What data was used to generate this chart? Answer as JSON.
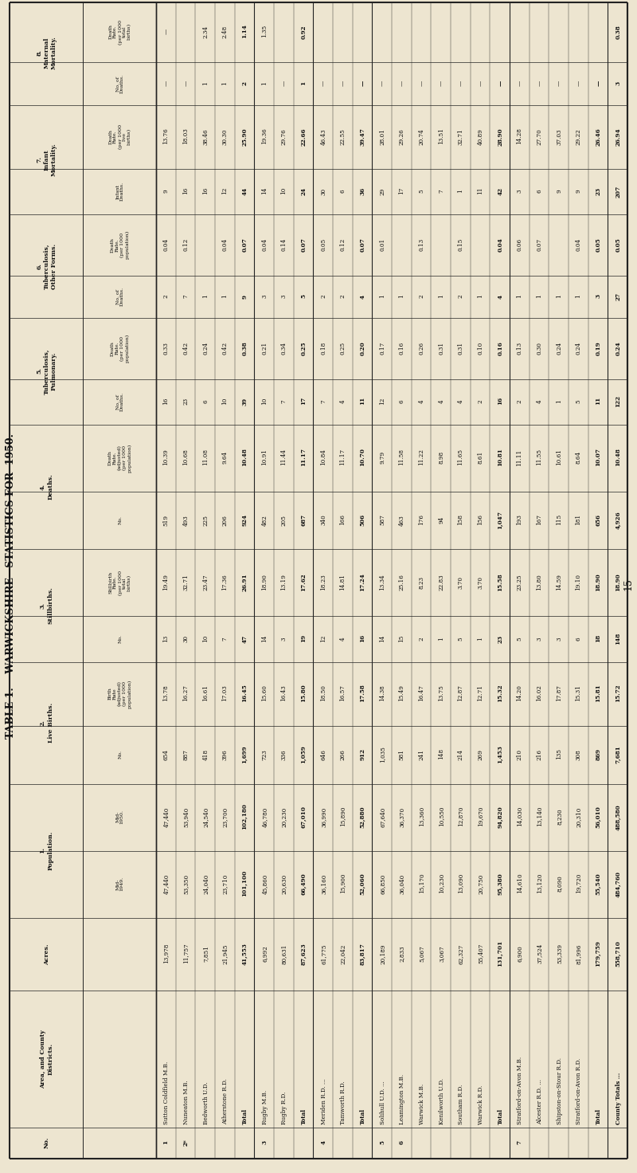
{
  "title": "TABLE 1.    WARWICKSHIRE—STATISTICS FOR  1950.",
  "page_number": "15",
  "bg_color": "#ede5d0",
  "table_bg": "#f0ead8",
  "rows": [
    {
      "no": "1",
      "area": "Sutton Coldfield M.B.",
      "acres": "13,978",
      "pop49": "47,440",
      "pop50": "47,440",
      "lb_no": "654",
      "lb_rate": "13.78",
      "sb_no": "13",
      "sb_rate": "19.49",
      "d_no": "519",
      "d_rate": "10.39",
      "tp_no": "16",
      "tp_rate": "0.33",
      "to_no": "2",
      "to_rate": "0.04",
      "id": "9",
      "im": "13.76",
      "md": "—",
      "mm": "—",
      "is_total": false,
      "is_county": false
    },
    {
      "no": "2*",
      "area": "Nuneaton M.B.",
      "acres": "11,757",
      "pop49": "53,350",
      "pop50": "53,940",
      "lb_no": "887",
      "lb_rate": "16.27",
      "sb_no": "30",
      "sb_rate": "32.71",
      "d_no": "493",
      "d_rate": "10.68",
      "tp_no": "23",
      "tp_rate": "0.42",
      "to_no": "7",
      "to_rate": "0.12",
      "id": "16",
      "im": "18.03",
      "md": "—",
      "mm": "",
      "is_total": false,
      "is_county": false
    },
    {
      "no": "",
      "area": "Bedworth U.D.",
      "acres": "7,851",
      "pop49": "24,040",
      "pop50": "24,540",
      "lb_no": "418",
      "lb_rate": "16.61",
      "sb_no": "10",
      "sb_rate": "23.47",
      "d_no": "225",
      "d_rate": "11.08",
      "tp_no": "6",
      "tp_rate": "0.24",
      "to_no": "1",
      "to_rate": "",
      "id": "16",
      "im": "38.46",
      "md": "1",
      "mm": "2.34",
      "is_total": false,
      "is_county": false
    },
    {
      "no": "",
      "area": "Atherstone R.D.",
      "acres": "21,945",
      "pop49": "23,710",
      "pop50": "23,700",
      "lb_no": "396",
      "lb_rate": "17.03",
      "sb_no": "7",
      "sb_rate": "17.36",
      "d_no": "206",
      "d_rate": "9.64",
      "tp_no": "10",
      "tp_rate": "0.42",
      "to_no": "1",
      "to_rate": "0.04",
      "id": "12",
      "im": "30.30",
      "md": "1",
      "mm": "2.48",
      "is_total": false,
      "is_county": false
    },
    {
      "no": "",
      "area": "Total",
      "acres": "41,553",
      "pop49": "101,100",
      "pop50": "102,180",
      "lb_no": "1,699",
      "lb_rate": "16.45",
      "sb_no": "47",
      "sb_rate": "26.91",
      "d_no": "924",
      "d_rate": "10.48",
      "tp_no": "39",
      "tp_rate": "0.38",
      "to_no": "9",
      "to_rate": "0.07",
      "id": "44",
      "im": "25.90",
      "md": "2",
      "mm": "1.14",
      "is_total": true,
      "is_county": false
    },
    {
      "no": "3",
      "area": "Rugby M.B.",
      "acres": "6,992",
      "pop49": "45,860",
      "pop50": "46,780",
      "lb_no": "723",
      "lb_rate": "15.60",
      "sb_no": "14",
      "sb_rate": "18.90",
      "d_no": "482",
      "d_rate": "10.91",
      "tp_no": "10",
      "tp_rate": "0.21",
      "to_no": "3",
      "to_rate": "0.04",
      "id": "14",
      "im": "19.36",
      "md": "1",
      "mm": "1.35",
      "is_total": false,
      "is_county": false
    },
    {
      "no": "",
      "area": "Rugby R.D.",
      "acres": "80,631",
      "pop49": "20,630",
      "pop50": "20,230",
      "lb_no": "336",
      "lb_rate": "16.43",
      "sb_no": "3",
      "sb_rate": "13.19",
      "d_no": "205",
      "d_rate": "11.44",
      "tp_no": "7",
      "tp_rate": "0.34",
      "to_no": "3",
      "to_rate": "0.14",
      "id": "10",
      "im": "29.76",
      "md": "—",
      "mm": "",
      "is_total": false,
      "is_county": false
    },
    {
      "no": "",
      "area": "Total",
      "acres": "87,623",
      "pop49": "66,490",
      "pop50": "67,010",
      "lb_no": "1,059",
      "lb_rate": "15.80",
      "sb_no": "19",
      "sb_rate": "17.62",
      "d_no": "687",
      "d_rate": "11.17",
      "tp_no": "17",
      "tp_rate": "0.25",
      "to_no": "5",
      "to_rate": "0.07",
      "id": "24",
      "im": "22.66",
      "md": "1",
      "mm": "0.92",
      "is_total": true,
      "is_county": false
    },
    {
      "no": "4",
      "area": "Meriden R.D. ...",
      "acres": "61,775",
      "pop49": "36,160",
      "pop50": "36,990",
      "lb_no": "646",
      "lb_rate": "18.50",
      "sb_no": "12",
      "sb_rate": "18.23",
      "d_no": "340",
      "d_rate": "10.84",
      "tp_no": "7",
      "tp_rate": "0.18",
      "to_no": "2",
      "to_rate": "0.05",
      "id": "30",
      "im": "46.43",
      "md": "—",
      "mm": "",
      "is_total": false,
      "is_county": false
    },
    {
      "no": "",
      "area": "Tamworth R.D.",
      "acres": "22,042",
      "pop49": "15,900",
      "pop50": "15,890",
      "lb_no": "266",
      "lb_rate": "16.57",
      "sb_no": "4",
      "sb_rate": "14.81",
      "d_no": "166",
      "d_rate": "11.17",
      "tp_no": "4",
      "tp_rate": "0.25",
      "to_no": "2",
      "to_rate": "0.12",
      "id": "6",
      "im": "22.55",
      "md": "—",
      "mm": "",
      "is_total": false,
      "is_county": false
    },
    {
      "no": "",
      "area": "Total",
      "acres": "83,817",
      "pop49": "52,060",
      "pop50": "52,880",
      "lb_no": "912",
      "lb_rate": "17.58",
      "sb_no": "16",
      "sb_rate": "17.24",
      "d_no": "506",
      "d_rate": "10.70",
      "tp_no": "11",
      "tp_rate": "0.20",
      "to_no": "4",
      "to_rate": "0.07",
      "id": "36",
      "im": "39.47",
      "md": "—",
      "mm": "",
      "is_total": true,
      "is_county": false
    },
    {
      "no": "5",
      "area": "Solihull U.D. ...",
      "acres": "20,189",
      "pop49": "66,850",
      "pop50": "67,640",
      "lb_no": "1,035",
      "lb_rate": "14.38",
      "sb_no": "14",
      "sb_rate": "13.34",
      "d_no": "587",
      "d_rate": "9.79",
      "tp_no": "12",
      "tp_rate": "0.17",
      "to_no": "1",
      "to_rate": "0.01",
      "id": "29",
      "im": "28.01",
      "md": "—",
      "mm": "",
      "is_total": false,
      "is_county": false
    },
    {
      "no": "6",
      "area": "Leamington M.B.",
      "acres": "2,833",
      "pop49": "36,040",
      "pop50": "36,370",
      "lb_no": "581",
      "lb_rate": "15.49",
      "sb_no": "15",
      "sb_rate": "25.16",
      "d_no": "463",
      "d_rate": "11.58",
      "tp_no": "6",
      "tp_rate": "0.16",
      "to_no": "1",
      "to_rate": "",
      "id": "17",
      "im": "29.26",
      "md": "—",
      "mm": "",
      "is_total": false,
      "is_county": false
    },
    {
      "no": "",
      "area": "Warwick M.B.",
      "acres": "5,067",
      "pop49": "15,170",
      "pop50": "13,360",
      "lb_no": "241",
      "lb_rate": "16.47",
      "sb_no": "2",
      "sb_rate": "8.23",
      "d_no": "176",
      "d_rate": "11.22",
      "tp_no": "4",
      "tp_rate": "0.26",
      "to_no": "2",
      "to_rate": "0.13",
      "id": "5",
      "im": "20.74",
      "md": "—",
      "mm": "",
      "is_total": false,
      "is_county": false
    },
    {
      "no": "",
      "area": "Kenilworth U.D.",
      "acres": "3,067",
      "pop49": "10,230",
      "pop50": "10,550",
      "lb_no": "148",
      "lb_rate": "13.75",
      "sb_no": "1",
      "sb_rate": "22.83",
      "d_no": "94",
      "d_rate": "8.98",
      "tp_no": "4",
      "tp_rate": "0.31",
      "to_no": "1",
      "to_rate": "",
      "id": "7",
      "im": "13.51",
      "md": "—",
      "mm": "",
      "is_total": false,
      "is_county": false
    },
    {
      "no": "",
      "area": "Southam R.D.",
      "acres": "62,327",
      "pop49": "13,090",
      "pop50": "12,870",
      "lb_no": "214",
      "lb_rate": "12.87",
      "sb_no": "5",
      "sb_rate": "3.70",
      "d_no": "158",
      "d_rate": "11.65",
      "tp_no": "4",
      "tp_rate": "0.31",
      "to_no": "2",
      "to_rate": "0.15",
      "id": "1",
      "im": "32.71",
      "md": "—",
      "mm": "",
      "is_total": false,
      "is_county": false
    },
    {
      "no": "",
      "area": "Warwick R.D.",
      "acres": "55,407",
      "pop49": "20,750",
      "pop50": "19,670",
      "lb_no": "269",
      "lb_rate": "12.71",
      "sb_no": "1",
      "sb_rate": "3.70",
      "d_no": "156",
      "d_rate": "8.61",
      "tp_no": "2",
      "tp_rate": "0.10",
      "to_no": "1",
      "to_rate": "",
      "id": "11",
      "im": "40.89",
      "md": "—",
      "mm": "",
      "is_total": false,
      "is_county": false
    },
    {
      "no": "",
      "area": "Total",
      "acres": "131,701",
      "pop49": "95,380",
      "pop50": "94,820",
      "lb_no": "1,453",
      "lb_rate": "15.32",
      "sb_no": "23",
      "sb_rate": "15.58",
      "d_no": "1,047",
      "d_rate": "10.81",
      "tp_no": "16",
      "tp_rate": "0.16",
      "to_no": "4",
      "to_rate": "0.04",
      "id": "42",
      "im": "28.90",
      "md": "—",
      "mm": "",
      "is_total": true,
      "is_county": false
    },
    {
      "no": "7",
      "area": "Stratford-on-Avon M.B.",
      "acres": "6,900",
      "pop49": "14,610",
      "pop50": "14,030",
      "lb_no": "210",
      "lb_rate": "14.20",
      "sb_no": "5",
      "sb_rate": "23.25",
      "d_no": "193",
      "d_rate": "11.11",
      "tp_no": "2",
      "tp_rate": "0.13",
      "to_no": "1",
      "to_rate": "0.06",
      "id": "3",
      "im": "14.28",
      "md": "—",
      "mm": "",
      "is_total": false,
      "is_county": false
    },
    {
      "no": "",
      "area": "Alcester R.D. ...",
      "acres": "37,524",
      "pop49": "13,120",
      "pop50": "13,140",
      "lb_no": "216",
      "lb_rate": "16.02",
      "sb_no": "3",
      "sb_rate": "13.80",
      "d_no": "167",
      "d_rate": "11.55",
      "tp_no": "4",
      "tp_rate": "0.30",
      "to_no": "1",
      "to_rate": "0.07",
      "id": "6",
      "im": "27.70",
      "md": "—",
      "mm": "",
      "is_total": false,
      "is_county": false
    },
    {
      "no": "",
      "area": "Shipston-on-Stour R.D.",
      "acres": "53,339",
      "pop49": "8,090",
      "pop50": "8,230",
      "lb_no": "135",
      "lb_rate": "17.87",
      "sb_no": "3",
      "sb_rate": "14.59",
      "d_no": "115",
      "d_rate": "10.61",
      "tp_no": "1",
      "tp_rate": "0.24",
      "to_no": "1",
      "to_rate": "",
      "id": "9",
      "im": "37.03",
      "md": "—",
      "mm": "",
      "is_total": false,
      "is_county": false
    },
    {
      "no": "",
      "area": "Stratford-on-Avon R.D.",
      "acres": "81,996",
      "pop49": "19,720",
      "pop50": "20,310",
      "lb_no": "308",
      "lb_rate": "15.31",
      "sb_no": "6",
      "sb_rate": "19.10",
      "d_no": "181",
      "d_rate": "8.64",
      "tp_no": "5",
      "tp_rate": "0.24",
      "to_no": "1",
      "to_rate": "0.04",
      "id": "9",
      "im": "29.22",
      "md": "—",
      "mm": "",
      "is_total": false,
      "is_county": false
    },
    {
      "no": "",
      "area": "Total",
      "acres": "179,759",
      "pop49": "55,540",
      "pop50": "56,010",
      "lb_no": "869",
      "lb_rate": "15.81",
      "sb_no": "18",
      "sb_rate": "18.90",
      "d_no": "656",
      "d_rate": "10.07",
      "tp_no": "11",
      "tp_rate": "0.19",
      "to_no": "3",
      "to_rate": "0.05",
      "id": "23",
      "im": "26.46",
      "md": "—",
      "mm": "",
      "is_total": true,
      "is_county": false
    },
    {
      "no": "",
      "area": "County Totals ...",
      "acres": "558,710",
      "pop49": "484,760",
      "pop50": "488,580",
      "lb_no": "7,681",
      "lb_rate": "15.72",
      "sb_no": "148",
      "sb_rate": "18.90",
      "d_no": "4,926",
      "d_rate": "10.48",
      "tp_no": "122",
      "tp_rate": "0.24",
      "to_no": "27",
      "to_rate": "0.05",
      "id": "207",
      "im": "26.94",
      "md": "3",
      "mm": "0.38",
      "is_total": true,
      "is_county": true
    }
  ],
  "col_headers_top": [
    {
      "label": "No.",
      "cols": [
        0,
        0
      ]
    },
    {
      "label": "Area, and County\nDistricts.",
      "cols": [
        1,
        1
      ]
    },
    {
      "label": "Acres.",
      "cols": [
        2,
        2
      ]
    },
    {
      "label": "1.\nPopulation.",
      "cols": [
        3,
        4
      ]
    },
    {
      "label": "2.\nLive Births.",
      "cols": [
        5,
        6
      ]
    },
    {
      "label": "3.\nStillbirths.",
      "cols": [
        7,
        8
      ]
    },
    {
      "label": "4.\nDeaths.",
      "cols": [
        9,
        10
      ]
    },
    {
      "label": "5.\nTuberculosis,\nPulmonary.",
      "cols": [
        11,
        12
      ]
    },
    {
      "label": "6.\nTuberculosis,\nOther Forms.",
      "cols": [
        13,
        14
      ]
    },
    {
      "label": "7.\nInfant\nMortality.",
      "cols": [
        15,
        16
      ]
    },
    {
      "label": "8.\nMaternal\nMortality.",
      "cols": [
        17,
        18
      ]
    }
  ],
  "col_headers_sub": [
    "",
    "",
    "",
    "Mid-\n1949.",
    "Mid-\n1950.",
    "No.",
    "Birth\nRate\n(adjusted)\n(per 1000\npopulation)",
    "No.",
    "Stillbirth\nRate.\n(per 1000\ntotal\nbirths)",
    "No.",
    "Death\nRate.\n(adjusted)\n(per 1000\npopulation)",
    "No. of\nDeaths.",
    "Death\nRate.\n(per 1000\npopulation)",
    "No. of\nDeaths.",
    "Death\nRate.\n(per 1000\npopulation)",
    "Infant\nDeaths.",
    "Death\nRate.\n(per 1000\nlive\nbirths)",
    "No. of\nDeaths.",
    "Death\nRate.\n(per 1000\ntotal\nbirths)"
  ]
}
